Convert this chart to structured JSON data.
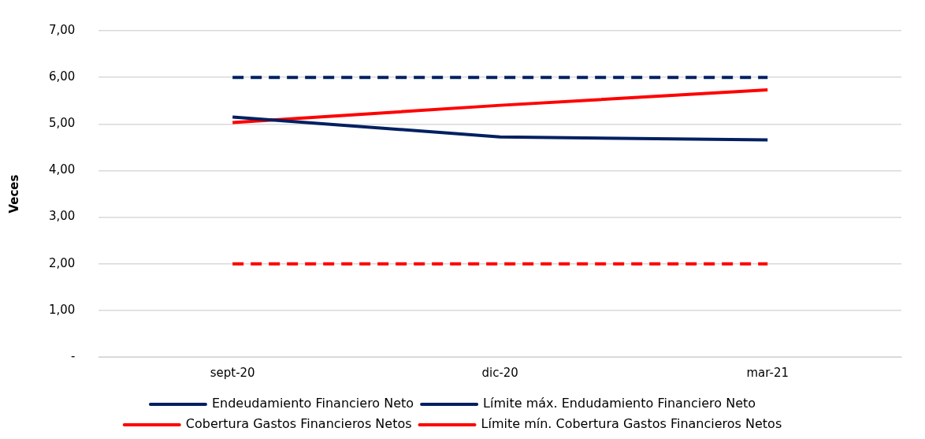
{
  "chart_data": {
    "type": "line",
    "ylabel": "Veces",
    "categories": [
      "sept-20",
      "dic-20",
      "mar-21"
    ],
    "series": [
      {
        "name": "Endeudamiento Financiero Neto",
        "color": "#002060",
        "values": [
          5.15,
          4.72,
          4.66
        ],
        "line_style": "solid"
      },
      {
        "name": "Límite máx. Endudamiento Financiero Neto",
        "color": "#002060",
        "values": [
          6,
          6,
          6
        ],
        "line_style": "dashed"
      },
      {
        "name": "Cobertura Gastos Financieros Netos",
        "color": "#ff0000",
        "values": [
          5.03,
          5.4,
          5.73
        ],
        "line_style": "solid"
      },
      {
        "name": "Límite mín. Cobertura Gastos Financieros Netos",
        "color": "#ff0000",
        "values": [
          2,
          2,
          2
        ],
        "line_style": "dashed"
      }
    ],
    "ylim": [
      0,
      7
    ],
    "yticks": [
      {
        "value": 0,
        "label": "-"
      },
      {
        "value": 1,
        "label": "1,00"
      },
      {
        "value": 2,
        "label": "2,00"
      },
      {
        "value": 3,
        "label": "3,00"
      },
      {
        "value": 4,
        "label": "4,00"
      },
      {
        "value": 5,
        "label": "5,00"
      },
      {
        "value": 6,
        "label": "6,00"
      },
      {
        "value": 7,
        "label": "7,00"
      }
    ],
    "grid": "y",
    "legend": "bottom",
    "marker": "none"
  }
}
